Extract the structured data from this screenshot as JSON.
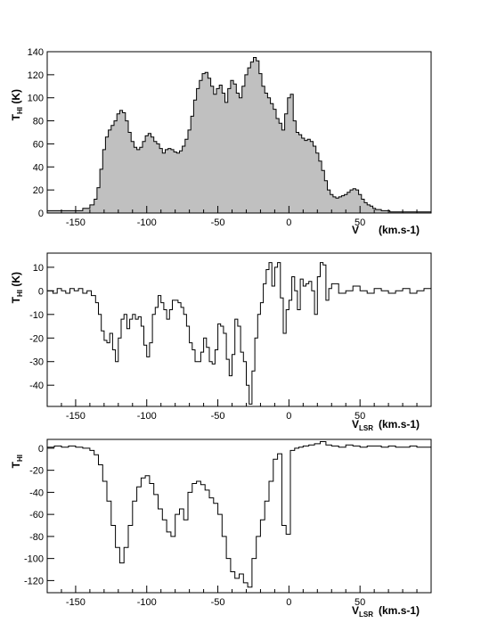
{
  "chart_data": [
    {
      "type": "area",
      "style": "step-histogram",
      "fill": "#c0c0c0",
      "stroke": "#000000",
      "ylabel": "T",
      "ylabel_sub": "HI",
      "ylabel_unit": " (K)",
      "xlabel": "V",
      "xlabel_sub": "",
      "xlabel_unit": "(km.s-1)",
      "xlim": [
        -170,
        100
      ],
      "ylim": [
        0,
        140
      ],
      "xticks": [
        -150,
        -100,
        -50,
        0,
        50
      ],
      "xtick_labels": [
        "-150",
        "-100",
        "-50",
        "0",
        "50"
      ],
      "yticks": [
        0,
        20,
        40,
        60,
        80,
        100,
        120,
        140
      ],
      "ytick_labels": [
        "0",
        "20",
        "40",
        "60",
        "80",
        "100",
        "120",
        "140"
      ],
      "grid": false,
      "x": [
        -170,
        -150,
        -145,
        -140,
        -137,
        -135,
        -133,
        -131,
        -129,
        -127,
        -125,
        -123,
        -121,
        -119,
        -117,
        -115,
        -113,
        -111,
        -109,
        -107,
        -105,
        -103,
        -101,
        -99,
        -97,
        -95,
        -93,
        -91,
        -89,
        -87,
        -85,
        -83,
        -81,
        -79,
        -77,
        -75,
        -73,
        -71,
        -69,
        -67,
        -65,
        -63,
        -61,
        -59,
        -57,
        -55,
        -53,
        -51,
        -49,
        -47,
        -45,
        -43,
        -41,
        -39,
        -37,
        -35,
        -33,
        -31,
        -29,
        -27,
        -25,
        -23,
        -21,
        -19,
        -17,
        -15,
        -13,
        -11,
        -9,
        -7,
        -5,
        -3,
        -1,
        1,
        3,
        5,
        7,
        9,
        11,
        13,
        15,
        17,
        19,
        21,
        23,
        25,
        27,
        29,
        31,
        33,
        35,
        37,
        39,
        41,
        43,
        45,
        47,
        49,
        51,
        53,
        55,
        57,
        59,
        61,
        63,
        65,
        67,
        69,
        71,
        73,
        75,
        80,
        85,
        90,
        95,
        100
      ],
      "values": [
        2,
        2,
        4,
        7,
        12,
        22,
        38,
        55,
        66,
        72,
        76,
        80,
        86,
        89,
        87,
        80,
        70,
        62,
        57,
        55,
        57,
        62,
        67,
        69,
        66,
        62,
        60,
        56,
        52,
        55,
        56,
        55,
        53,
        52,
        54,
        58,
        64,
        72,
        84,
        98,
        108,
        115,
        121,
        122,
        117,
        110,
        103,
        108,
        111,
        104,
        96,
        108,
        115,
        112,
        104,
        100,
        110,
        120,
        126,
        131,
        135,
        132,
        121,
        110,
        104,
        100,
        95,
        90,
        82,
        78,
        72,
        86,
        100,
        103,
        80,
        70,
        68,
        65,
        63,
        64,
        62,
        58,
        52,
        45,
        37,
        28,
        20,
        16,
        14,
        13,
        14,
        15,
        16,
        18,
        20,
        21,
        20,
        16,
        12,
        9,
        7,
        6,
        4,
        3,
        3,
        2,
        2,
        2,
        1,
        1,
        1,
        1,
        1,
        1,
        1,
        1
      ]
    },
    {
      "type": "line",
      "style": "step-histogram",
      "stroke": "#000000",
      "ylabel": "T",
      "ylabel_sub": "HI",
      "ylabel_unit": " (K)",
      "xlabel": "V",
      "xlabel_sub": "LSR",
      "xlabel_unit": "(km.s-1)",
      "xlim": [
        -170,
        100
      ],
      "ylim": [
        -49,
        16
      ],
      "xticks": [
        -150,
        -100,
        -50,
        0,
        50
      ],
      "xtick_labels": [
        "-150",
        "-100",
        "-50",
        "0",
        "50"
      ],
      "yticks": [
        -40,
        -30,
        -20,
        -10,
        0,
        10
      ],
      "ytick_labels": [
        "-40",
        "-30",
        "-20",
        "-10",
        "0",
        "10"
      ],
      "grid": false,
      "x": [
        -170,
        -166,
        -163,
        -160,
        -157,
        -154,
        -151,
        -148,
        -145,
        -142,
        -139,
        -136,
        -134,
        -132,
        -130,
        -128,
        -126,
        -124,
        -122,
        -120,
        -118,
        -116,
        -114,
        -112,
        -110,
        -108,
        -106,
        -104,
        -102,
        -100,
        -98,
        -96,
        -94,
        -92,
        -90,
        -88,
        -86,
        -84,
        -82,
        -80,
        -78,
        -76,
        -74,
        -72,
        -70,
        -68,
        -66,
        -64,
        -62,
        -60,
        -58,
        -56,
        -54,
        -52,
        -50,
        -48,
        -46,
        -44,
        -42,
        -40,
        -38,
        -36,
        -34,
        -32,
        -30,
        -28,
        -26,
        -24,
        -22,
        -20,
        -18,
        -16,
        -14,
        -12,
        -10,
        -8,
        -6,
        -4,
        -2,
        0,
        2,
        4,
        6,
        8,
        10,
        12,
        14,
        16,
        18,
        20,
        22,
        24,
        26,
        28,
        30,
        35,
        40,
        45,
        50,
        55,
        60,
        65,
        70,
        75,
        80,
        85,
        90,
        95,
        100
      ],
      "values": [
        0,
        -1,
        1,
        0,
        -1,
        1,
        0,
        1,
        -1,
        0,
        -2,
        -5,
        -10,
        -17,
        -21,
        -22,
        -18,
        -25,
        -30,
        -20,
        -12,
        -10,
        -16,
        -12,
        -10,
        -12,
        -11,
        -15,
        -23,
        -28,
        -22,
        -10,
        -7,
        -2,
        -5,
        -8,
        -12,
        -8,
        -4,
        -4,
        -5,
        -7,
        -10,
        -15,
        -22,
        -25,
        -30,
        -30,
        -26,
        -20,
        -24,
        -30,
        -31,
        -25,
        -14,
        -15,
        -18,
        -29,
        -36,
        -27,
        -12,
        -15,
        -26,
        -30,
        -40,
        -48,
        -34,
        -20,
        -10,
        -5,
        3,
        9,
        12,
        2,
        10,
        12,
        -3,
        -18,
        -8,
        -4,
        6,
        0,
        -8,
        5,
        2,
        3,
        4,
        0,
        -10,
        6,
        12,
        11,
        -4,
        1,
        3,
        -1,
        0,
        2,
        0,
        -1,
        1,
        0,
        -1,
        0,
        1,
        -1,
        0,
        1,
        0
      ]
    },
    {
      "type": "line",
      "style": "step-histogram",
      "stroke": "#000000",
      "ylabel": "T",
      "ylabel_sub": "HI",
      "ylabel_unit": "",
      "xlabel": "V",
      "xlabel_sub": "LSR",
      "xlabel_unit": "(km.s-1)",
      "xlim": [
        -170,
        100
      ],
      "ylim": [
        -131,
        8
      ],
      "xticks": [
        -150,
        -100,
        -50,
        0,
        50
      ],
      "xtick_labels": [
        "-150",
        "-100",
        "-50",
        "0",
        "50"
      ],
      "yticks": [
        -120,
        -100,
        -80,
        -60,
        -40,
        -20,
        0
      ],
      "ytick_labels": [
        "-120",
        "-100",
        "-80",
        "-60",
        "-40",
        "-20",
        "0"
      ],
      "grid": false,
      "x": [
        -170,
        -165,
        -160,
        -155,
        -150,
        -145,
        -140,
        -137,
        -134,
        -131,
        -128,
        -125,
        -122,
        -119,
        -116,
        -113,
        -110,
        -107,
        -104,
        -101,
        -98,
        -95,
        -92,
        -89,
        -86,
        -83,
        -80,
        -77,
        -74,
        -71,
        -68,
        -65,
        -62,
        -59,
        -56,
        -53,
        -50,
        -47,
        -44,
        -41,
        -38,
        -35,
        -32,
        -29,
        -26,
        -23,
        -20,
        -17,
        -14,
        -11,
        -8,
        -5,
        -2,
        1,
        4,
        7,
        10,
        14,
        18,
        22,
        26,
        30,
        35,
        40,
        45,
        50,
        55,
        60,
        65,
        70,
        75,
        80,
        85,
        90,
        95,
        100
      ],
      "values": [
        1,
        2,
        1,
        2,
        1,
        0,
        -2,
        -6,
        -15,
        -30,
        -48,
        -70,
        -90,
        -104,
        -90,
        -70,
        -48,
        -35,
        -27,
        -25,
        -32,
        -42,
        -55,
        -65,
        -76,
        -80,
        -60,
        -55,
        -65,
        -40,
        -32,
        -30,
        -33,
        -38,
        -45,
        -50,
        -60,
        -80,
        -100,
        -112,
        -118,
        -114,
        -122,
        -126,
        -100,
        -80,
        -65,
        -48,
        -30,
        -10,
        -5,
        -70,
        -78,
        -2,
        0,
        1,
        2,
        3,
        4,
        6,
        3,
        2,
        1,
        3,
        2,
        1,
        2,
        2,
        1,
        2,
        1,
        1,
        2,
        1,
        1,
        2
      ]
    }
  ]
}
